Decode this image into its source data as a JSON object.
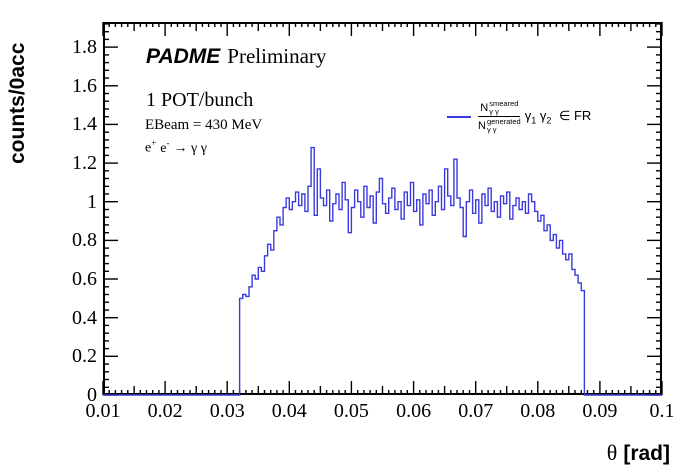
{
  "figure": {
    "y_axis_title": "counts/0acc",
    "x_axis_title_symbol": "θ",
    "x_axis_title_unit": "[rad]"
  },
  "annotations": {
    "experiment": "PADME",
    "preliminary": "Preliminary",
    "pot": "1 POT/bunch",
    "ebeam": "EBeam = 430 MeV",
    "process": {
      "e1": "e",
      "s1": "+",
      "e2": "e",
      "s2": "-",
      "rest": "→ γ γ"
    }
  },
  "legend": {
    "line_color": "#3b3bdd",
    "num_base": "N",
    "num_sup": "smeared",
    "num_sub": "γ γ",
    "den_base": "N",
    "den_sup": "generated",
    "den_sub": "γ γ",
    "gamma1": "γ",
    "sub1": "1",
    "gamma2": "γ",
    "sub2": "2",
    "membership": "∈ FR"
  },
  "chart_data": {
    "type": "bar",
    "subtype": "step-histogram",
    "title": "",
    "xlabel": "θ [rad]",
    "ylabel": "counts/0acc",
    "xlim": [
      0.01,
      0.1
    ],
    "ylim": [
      0,
      1.93
    ],
    "grid": false,
    "legend_position": "upper right inside",
    "x_major_ticks": [
      0.01,
      0.02,
      0.03,
      0.04,
      0.05,
      0.06,
      0.07,
      0.08,
      0.09,
      0.1
    ],
    "x_tick_labels": [
      "0.01",
      "0.02",
      "0.03",
      "0.04",
      "0.05",
      "0.06",
      "0.07",
      "0.08",
      "0.09",
      "0.1"
    ],
    "y_major_ticks": [
      0,
      0.2,
      0.4,
      0.6,
      0.8,
      1.0,
      1.2,
      1.4,
      1.6,
      1.8
    ],
    "y_tick_labels": [
      "0",
      "0.2",
      "0.4",
      "0.6",
      "0.8",
      "1",
      "1.2",
      "1.4",
      "1.6",
      "1.8"
    ],
    "x_minor_step": 0.001,
    "x_medium_step": 0.005,
    "y_minor_step": 0.04,
    "series": [
      {
        "name": "N_gg_smeared / N_gg_generated, gamma1 gamma2 in FR",
        "color": "#3b3bdd",
        "baseline": 0,
        "bin_start": 0.032,
        "bin_width": 0.0005,
        "values": [
          0.5,
          0.52,
          0.51,
          0.56,
          0.62,
          0.6,
          0.66,
          0.64,
          0.72,
          0.78,
          0.75,
          0.85,
          0.92,
          0.88,
          0.97,
          1.02,
          0.96,
          1.0,
          1.05,
          0.98,
          1.04,
          0.95,
          1.08,
          1.28,
          0.93,
          1.17,
          1.02,
          0.98,
          1.06,
          0.9,
          0.99,
          1.04,
          0.96,
          1.1,
          1.01,
          0.84,
          0.97,
          1.06,
          1.0,
          0.92,
          1.08,
          0.97,
          1.03,
          0.89,
          1.05,
          1.12,
          0.99,
          0.94,
          1.02,
          1.07,
          0.96,
          1.0,
          0.91,
          1.05,
          0.98,
          1.1,
          0.95,
          1.01,
          0.88,
          1.04,
          0.99,
          1.06,
          0.93,
          1.0,
          1.08,
          0.96,
          1.17,
          1.03,
          0.98,
          1.22,
          1.02,
          0.97,
          0.82,
          1.0,
          1.06,
          0.94,
          1.01,
          0.89,
          1.04,
          0.98,
          1.07,
          0.95,
          1.0,
          0.92,
          1.03,
          0.99,
          1.05,
          0.91,
          0.98,
          1.02,
          0.96,
          1.0,
          0.94,
          1.04,
          1.0,
          0.95,
          0.9,
          0.93,
          0.85,
          0.88,
          0.8,
          0.83,
          0.76,
          0.8,
          0.73,
          0.7,
          0.73,
          0.65,
          0.62,
          0.58,
          0.54
        ]
      }
    ]
  }
}
